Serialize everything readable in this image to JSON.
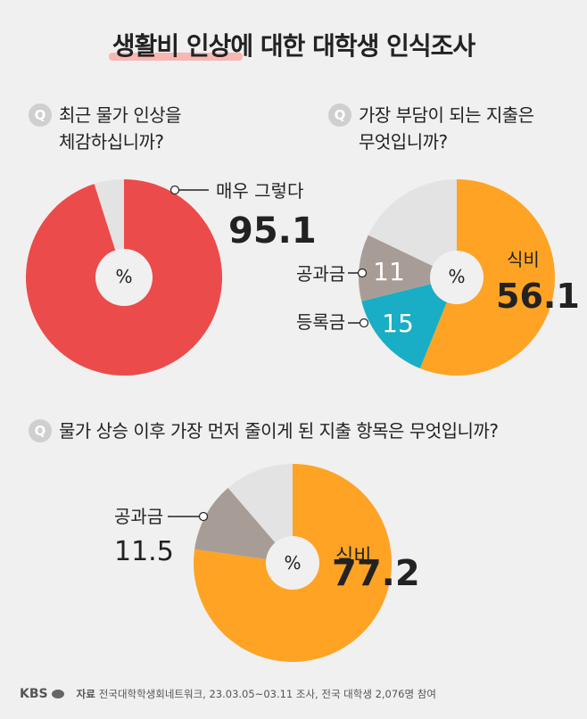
{
  "title": "생활비 인상에 대한 대학생 인식조사",
  "q_badge": "Q",
  "questions": {
    "q1": {
      "line1": "최근 물가 인상을",
      "line2": "체감하십니까?"
    },
    "q2": {
      "line1": "가장 부담이 되는 지출은",
      "line2": "무엇입니까?"
    },
    "q3": {
      "line1": "물가 상승 이후 가장 먼저 줄이게 된 지출 항목은 무엇입니까?"
    }
  },
  "colors": {
    "red": "#ec4b4b",
    "orange": "#ffa325",
    "teal": "#19aec5",
    "taupe": "#a89d96",
    "lightgray": "#e3e3e3"
  },
  "chart_data": [
    {
      "type": "pie",
      "unit": "%",
      "labels": [
        "매우 그렇다",
        ""
      ],
      "values": [
        95.1,
        4.9
      ],
      "value_labels": [
        "95.1",
        ""
      ],
      "colors": [
        "#ec4b4b",
        "#e3e3e3"
      ]
    },
    {
      "type": "pie",
      "unit": "%",
      "labels": [
        "식비",
        "등록금",
        "공과금",
        ""
      ],
      "values": [
        56.1,
        15,
        11,
        17.9
      ],
      "value_labels": [
        "56.1",
        "15",
        "11",
        ""
      ],
      "colors": [
        "#ffa325",
        "#19aec5",
        "#a89d96",
        "#e3e3e3"
      ]
    },
    {
      "type": "pie",
      "unit": "%",
      "labels": [
        "식비",
        "공과금",
        ""
      ],
      "values": [
        77.2,
        11.5,
        11.3
      ],
      "value_labels": [
        "77.2",
        "11.5",
        ""
      ],
      "colors": [
        "#ffa325",
        "#a89d96",
        "#e3e3e3"
      ]
    }
  ],
  "footer": {
    "logo": "KBS",
    "source_label": "자료",
    "source_text": "전국대학학생회네트워크, 23.03.05~03.11 조사, 전국 대학생 2,076명 참여"
  }
}
